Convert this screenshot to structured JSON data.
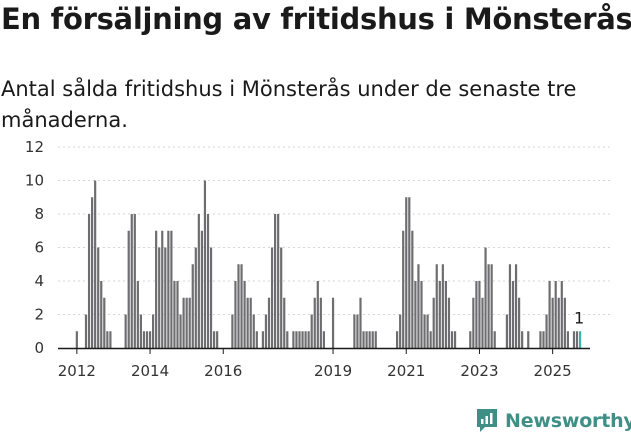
{
  "title": "En försäljning av fritidshus i Mönsterås",
  "subtitle": "Antal sålda fritidshus i Mönsterås under de senaste tre månaderna.",
  "brand": {
    "name": "Newsworthy",
    "icon": "newsworthy-chart-icon",
    "color": "#3f8f86"
  },
  "chart_data": {
    "type": "bar",
    "title": "",
    "xlabel": "",
    "ylabel": "",
    "ylim": [
      0,
      12
    ],
    "yticks": [
      0,
      2,
      4,
      6,
      8,
      10,
      12
    ],
    "grid": true,
    "bar_color": "#6e6e70",
    "highlight_color": "#3fb3a8",
    "x_start": "2011-08",
    "x_tick_labels": [
      {
        "label": "2012",
        "month": "2012-01"
      },
      {
        "label": "2014",
        "month": "2014-01"
      },
      {
        "label": "2016",
        "month": "2016-01"
      },
      {
        "label": "2019",
        "month": "2019-01"
      },
      {
        "label": "2021",
        "month": "2021-01"
      },
      {
        "label": "2023",
        "month": "2023-01"
      },
      {
        "label": "2025",
        "month": "2025-01"
      }
    ],
    "values": [
      0,
      0,
      0,
      0,
      0,
      1,
      0,
      0,
      2,
      8,
      9,
      10,
      6,
      4,
      3,
      1,
      1,
      0,
      0,
      0,
      0,
      2,
      7,
      8,
      8,
      4,
      2,
      1,
      1,
      1,
      2,
      7,
      6,
      7,
      6,
      7,
      7,
      4,
      4,
      2,
      3,
      3,
      3,
      5,
      6,
      8,
      7,
      10,
      8,
      6,
      1,
      1,
      0,
      0,
      0,
      0,
      2,
      4,
      5,
      5,
      4,
      3,
      3,
      2,
      1,
      0,
      1,
      2,
      3,
      6,
      8,
      8,
      6,
      3,
      1,
      0,
      1,
      1,
      1,
      1,
      1,
      1,
      2,
      3,
      4,
      3,
      1,
      0,
      0,
      3,
      0,
      0,
      0,
      0,
      0,
      0,
      2,
      2,
      3,
      1,
      1,
      1,
      1,
      1,
      0,
      0,
      0,
      0,
      0,
      0,
      1,
      2,
      7,
      9,
      9,
      7,
      4,
      5,
      4,
      2,
      2,
      1,
      3,
      5,
      4,
      5,
      4,
      3,
      1,
      1,
      0,
      0,
      0,
      0,
      1,
      3,
      4,
      4,
      3,
      6,
      5,
      5,
      1,
      0,
      0,
      0,
      2,
      5,
      4,
      5,
      3,
      1,
      0,
      1,
      0,
      0,
      0,
      1,
      1,
      2,
      4,
      3,
      4,
      3,
      4,
      3,
      1,
      0,
      1,
      1,
      1
    ],
    "highlight_last": true,
    "last_value_label": "1"
  }
}
